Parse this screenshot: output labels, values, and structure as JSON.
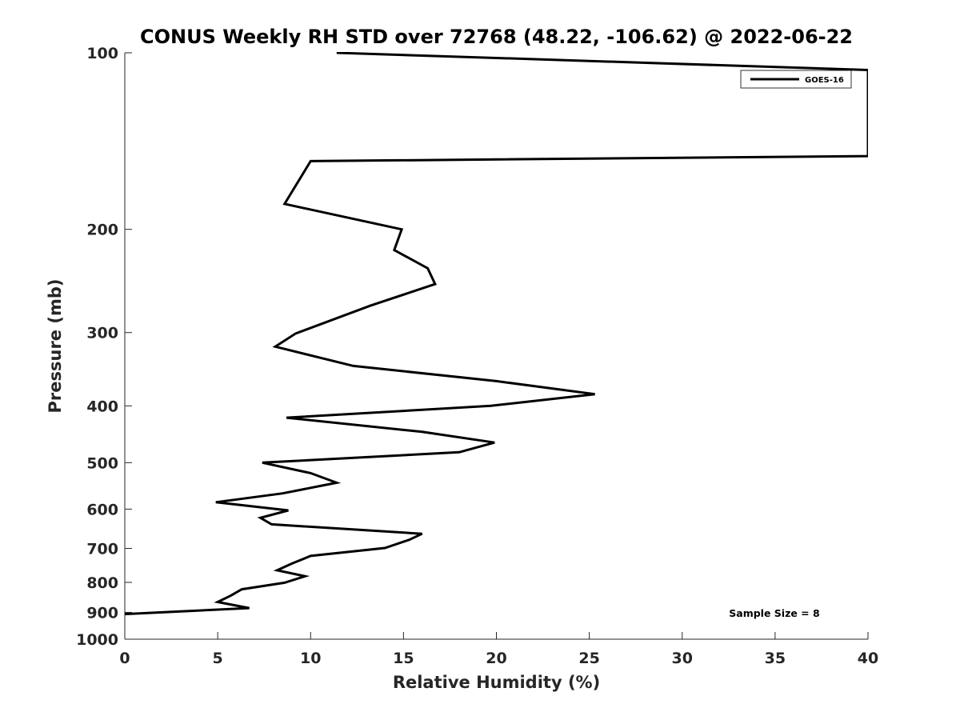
{
  "chart_data": {
    "type": "line",
    "title": "CONUS Weekly RH STD over 72768 (48.22, -106.62) @ 2022-06-22",
    "xlabel": "Relative Humidity (%)",
    "ylabel": "Pressure (mb)",
    "xlim": [
      0,
      40
    ],
    "ylim": [
      100,
      1000
    ],
    "y_scale": "log",
    "y_reversed": true,
    "grid": false,
    "legend_position": "top-right",
    "x_ticks": [
      "0",
      "5",
      "10",
      "15",
      "20",
      "25",
      "30",
      "35",
      "40"
    ],
    "y_ticks": [
      "100",
      "200",
      "300",
      "400",
      "500",
      "600",
      "700",
      "800",
      "900",
      "1000"
    ],
    "annotation": "Sample Size = 8",
    "series": [
      {
        "name": "GOES-16",
        "color": "#000000",
        "points": [
          [
            11.4,
            100
          ],
          [
            40.0,
            107
          ],
          [
            40.0,
            150
          ],
          [
            10.0,
            153
          ],
          [
            8.6,
            181
          ],
          [
            14.9,
            200
          ],
          [
            14.5,
            217
          ],
          [
            16.3,
            233
          ],
          [
            16.7,
            248
          ],
          [
            13.2,
            270
          ],
          [
            9.2,
            301
          ],
          [
            8.1,
            317
          ],
          [
            12.3,
            342
          ],
          [
            20.0,
            363
          ],
          [
            25.3,
            382
          ],
          [
            19.7,
            400
          ],
          [
            8.7,
            419
          ],
          [
            16.0,
            443
          ],
          [
            19.9,
            462
          ],
          [
            18.0,
            480
          ],
          [
            7.4,
            500
          ],
          [
            10.0,
            521
          ],
          [
            11.4,
            541
          ],
          [
            8.5,
            564
          ],
          [
            4.9,
            584
          ],
          [
            8.8,
            603
          ],
          [
            7.3,
            621
          ],
          [
            7.9,
            637
          ],
          [
            16.0,
            661
          ],
          [
            15.3,
            677
          ],
          [
            14.0,
            699
          ],
          [
            10.0,
            721
          ],
          [
            9.0,
            743
          ],
          [
            8.2,
            763
          ],
          [
            9.7,
            781
          ],
          [
            8.6,
            801
          ],
          [
            6.3,
            822
          ],
          [
            5.7,
            843
          ],
          [
            5.0,
            864
          ],
          [
            6.7,
            885
          ],
          [
            0.0,
            906
          ]
        ]
      }
    ]
  }
}
